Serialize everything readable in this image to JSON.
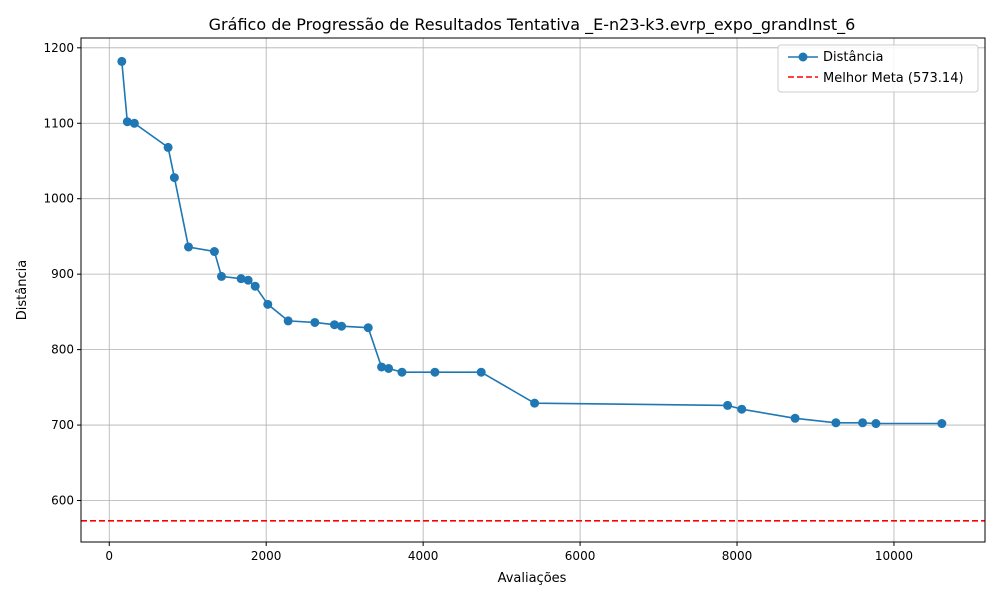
{
  "chart_data": {
    "type": "line",
    "title": "Gráfico de Progressão de Resultados Tentativa _E-n23-k3.evrp_expo_grandInst_6",
    "xlabel": "Avaliações",
    "ylabel": "Distância",
    "xlim": [
      -360,
      11160
    ],
    "ylim": [
      545,
      1213
    ],
    "xticks": [
      0,
      2000,
      4000,
      6000,
      8000,
      10000
    ],
    "yticks": [
      600,
      700,
      800,
      900,
      1000,
      1100,
      1200
    ],
    "grid": true,
    "legend_position": "top-right",
    "series": [
      {
        "name": "Distância",
        "color": "#1f77b4",
        "marker": "circle",
        "x": [
          160,
          230,
          320,
          750,
          830,
          1010,
          1340,
          1430,
          1680,
          1770,
          1860,
          2020,
          2280,
          2620,
          2870,
          2960,
          3300,
          3470,
          3560,
          3730,
          4150,
          4740,
          5420,
          7880,
          8060,
          8740,
          9260,
          9600,
          9770,
          10610
        ],
        "y": [
          1182,
          1102,
          1100,
          1068,
          1028,
          936,
          930,
          897,
          894,
          892,
          884,
          860,
          838,
          836,
          833,
          831,
          829,
          777,
          775,
          770,
          770,
          770,
          729,
          726,
          721,
          709,
          703,
          703,
          702,
          702
        ]
      }
    ],
    "reference_lines": [
      {
        "name": "Melhor Meta (573.14)",
        "y": 573.14,
        "color": "#ff0000",
        "style": "dashed"
      }
    ]
  }
}
